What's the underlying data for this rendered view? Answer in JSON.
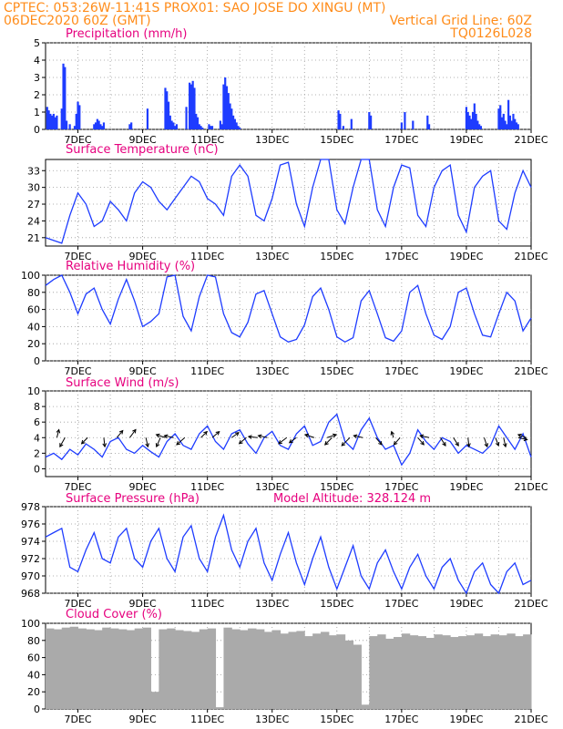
{
  "header": {
    "line1": "CPTEC:   053:26W-11:41S   PROX01: SAO JOSE DO XINGU (MT)",
    "line2_left": "06DEC2020 60Z (GMT)",
    "line2_right": "Vertical Grid Line: 60Z",
    "line3_right": "TQ0126L028"
  },
  "colors": {
    "header": "#ff8c1a",
    "title": "#e6007e",
    "series": "#1e3cff",
    "cloud": "#aaaaaa",
    "grid": "#999999"
  },
  "chart_data": [
    {
      "type": "bar",
      "title": "Precipitation (mm/h)",
      "x_tick_labels": [
        "7DEC",
        "9DEC",
        "11DEC",
        "13DEC",
        "15DEC",
        "17DEC",
        "19DEC",
        "21DEC"
      ],
      "x_range_days": [
        6.0,
        21.0
      ],
      "ylim": [
        0,
        5
      ],
      "yticks": [
        "0",
        "1",
        "2",
        "3",
        "4",
        "5"
      ],
      "grid": true,
      "x": [
        6.05,
        6.1,
        6.15,
        6.2,
        6.25,
        6.3,
        6.35,
        6.5,
        6.55,
        6.6,
        6.65,
        6.75,
        6.9,
        6.95,
        7.0,
        7.05,
        7.5,
        7.55,
        7.6,
        7.65,
        7.7,
        7.75,
        7.8,
        8.6,
        8.65,
        9.15,
        9.7,
        9.75,
        9.8,
        9.85,
        9.9,
        9.95,
        10.0,
        10.05,
        10.35,
        10.45,
        10.5,
        10.55,
        10.6,
        10.65,
        10.7,
        10.75,
        10.8,
        10.85,
        11.05,
        11.1,
        11.15,
        11.4,
        11.45,
        11.5,
        11.55,
        11.6,
        11.65,
        11.7,
        11.75,
        11.8,
        11.85,
        11.9,
        11.95,
        12.0,
        15.05,
        15.1,
        15.2,
        15.45,
        16.0,
        16.05,
        17.0,
        17.1,
        17.35,
        17.8,
        17.85,
        19.0,
        19.05,
        19.1,
        19.15,
        19.2,
        19.25,
        19.3,
        19.35,
        19.4,
        19.45,
        20.0,
        20.05,
        20.1,
        20.15,
        20.2,
        20.25,
        20.3,
        20.35,
        20.4,
        20.45,
        20.5,
        20.55,
        20.6
      ],
      "values": [
        1.3,
        1.1,
        0.9,
        0.8,
        0.9,
        0.7,
        0.8,
        1.2,
        3.8,
        3.6,
        0.5,
        0.3,
        0.2,
        0.9,
        1.6,
        1.4,
        0.3,
        0.4,
        0.6,
        0.5,
        0.3,
        0.2,
        0.4,
        0.3,
        0.4,
        1.2,
        2.4,
        2.2,
        1.6,
        0.8,
        0.5,
        0.4,
        0.2,
        0.3,
        1.3,
        2.7,
        2.6,
        2.8,
        2.4,
        0.9,
        0.7,
        0.3,
        0.2,
        0.1,
        0.3,
        0.2,
        0.2,
        0.5,
        0.3,
        2.6,
        3.0,
        2.5,
        2.1,
        1.5,
        1.2,
        0.8,
        0.6,
        0.4,
        0.2,
        0.1,
        1.1,
        0.9,
        0.2,
        0.6,
        1.0,
        0.8,
        0.4,
        1.0,
        0.5,
        0.8,
        0.3,
        1.3,
        1.0,
        0.8,
        0.6,
        1.0,
        1.5,
        0.9,
        0.5,
        0.3,
        0.2,
        1.2,
        1.4,
        0.7,
        0.9,
        0.5,
        0.3,
        1.7,
        0.8,
        0.5,
        0.9,
        0.6,
        0.4,
        0.3
      ]
    },
    {
      "type": "line",
      "title": "Surface Temperature (nC)",
      "x_tick_labels": [
        "7DEC",
        "9DEC",
        "11DEC",
        "13DEC",
        "15DEC",
        "17DEC",
        "19DEC",
        "21DEC"
      ],
      "x_range_days": [
        6.0,
        21.0
      ],
      "ylim": [
        19.5,
        35
      ],
      "yticks": [
        "21",
        "24",
        "27",
        "30",
        "33"
      ],
      "ytick_values": [
        21,
        24,
        27,
        30,
        33
      ],
      "grid": true,
      "series": [
        {
          "x": [
            6,
            6.25,
            6.5,
            6.75,
            7,
            7.25,
            7.5,
            7.75,
            8,
            8.25,
            8.5,
            8.75,
            9,
            9.25,
            9.5,
            9.75,
            10,
            10.25,
            10.5,
            10.75,
            11,
            11.25,
            11.5,
            11.75,
            12,
            12.25,
            12.5,
            12.75,
            13,
            13.25,
            13.5,
            13.75,
            14,
            14.25,
            14.5,
            14.75,
            15,
            15.25,
            15.5,
            15.75,
            16,
            16.25,
            16.5,
            16.75,
            17,
            17.25,
            17.5,
            17.75,
            18,
            18.25,
            18.5,
            18.75,
            19,
            19.25,
            19.5,
            19.75,
            20,
            20.25,
            20.5,
            20.75,
            21
          ],
          "values": [
            21,
            20.5,
            20,
            25,
            29,
            27,
            23,
            24,
            27.5,
            26,
            24,
            29,
            31,
            30,
            27.5,
            26,
            28,
            30,
            32,
            31,
            28,
            27,
            25,
            32,
            34,
            32,
            25,
            24,
            28,
            34,
            34.5,
            27,
            23,
            30,
            35,
            35,
            26,
            23.5,
            30,
            35,
            35,
            26,
            23,
            30,
            34,
            33.5,
            25,
            23,
            30,
            33,
            34,
            25,
            22,
            30,
            32,
            33,
            24,
            22.5,
            29,
            33,
            30
          ]
        }
      ]
    },
    {
      "type": "line",
      "title": "Relative Humidity (%)",
      "x_tick_labels": [
        "7DEC",
        "9DEC",
        "11DEC",
        "13DEC",
        "15DEC",
        "17DEC",
        "19DEC",
        "21DEC"
      ],
      "x_range_days": [
        6.0,
        21.0
      ],
      "ylim": [
        0,
        100
      ],
      "yticks": [
        "0",
        "20",
        "40",
        "60",
        "80",
        "100"
      ],
      "ytick_values": [
        0,
        20,
        40,
        60,
        80,
        100
      ],
      "grid": true,
      "series": [
        {
          "x": [
            6,
            6.25,
            6.5,
            6.75,
            7,
            7.25,
            7.5,
            7.75,
            8,
            8.25,
            8.5,
            8.75,
            9,
            9.25,
            9.5,
            9.75,
            10,
            10.25,
            10.5,
            10.75,
            11,
            11.25,
            11.5,
            11.75,
            12,
            12.25,
            12.5,
            12.75,
            13,
            13.25,
            13.5,
            13.75,
            14,
            14.25,
            14.5,
            14.75,
            15,
            15.25,
            15.5,
            15.75,
            16,
            16.25,
            16.5,
            16.75,
            17,
            17.25,
            17.5,
            17.75,
            18,
            18.25,
            18.5,
            18.75,
            19,
            19.25,
            19.5,
            19.75,
            20,
            20.25,
            20.5,
            20.75,
            21
          ],
          "values": [
            88,
            95,
            100,
            80,
            55,
            78,
            85,
            60,
            43,
            72,
            95,
            70,
            40,
            46,
            55,
            98,
            100,
            52,
            35,
            75,
            100,
            98,
            55,
            33,
            28,
            45,
            78,
            82,
            55,
            28,
            22,
            25,
            42,
            75,
            85,
            60,
            28,
            22,
            27,
            70,
            82,
            55,
            27,
            23,
            35,
            80,
            88,
            55,
            30,
            25,
            40,
            80,
            85,
            55,
            30,
            28,
            55,
            80,
            70,
            35,
            50
          ]
        }
      ]
    },
    {
      "type": "line",
      "title": "Surface Wind (m/s)",
      "x_tick_labels": [
        "7DEC",
        "9DEC",
        "11DEC",
        "13DEC",
        "15DEC",
        "17DEC",
        "19DEC",
        "21DEC"
      ],
      "x_range_days": [
        6.0,
        21.0
      ],
      "ylim": [
        -1,
        10
      ],
      "yticks": [
        "0",
        "2",
        "4",
        "6",
        "8",
        "10"
      ],
      "ytick_values": [
        0,
        2,
        4,
        6,
        8,
        10
      ],
      "grid": true,
      "series": [
        {
          "x": [
            6,
            6.25,
            6.5,
            6.75,
            7,
            7.25,
            7.5,
            7.75,
            8,
            8.25,
            8.5,
            8.75,
            9,
            9.25,
            9.5,
            9.75,
            10,
            10.25,
            10.5,
            10.75,
            11,
            11.25,
            11.5,
            11.75,
            12,
            12.25,
            12.5,
            12.75,
            13,
            13.25,
            13.5,
            13.75,
            14,
            14.25,
            14.5,
            14.75,
            15,
            15.25,
            15.5,
            15.75,
            16,
            16.25,
            16.5,
            16.75,
            17,
            17.25,
            17.5,
            17.75,
            18,
            18.25,
            18.5,
            18.75,
            19,
            19.25,
            19.5,
            19.75,
            20,
            20.25,
            20.5,
            20.75,
            21
          ],
          "values": [
            1.5,
            2,
            1.2,
            2.5,
            1.8,
            3.2,
            2.5,
            1.5,
            3.5,
            4,
            2.5,
            2,
            3,
            2.2,
            1.5,
            3.5,
            4.5,
            3,
            2.5,
            4.5,
            5.5,
            3.5,
            2.5,
            4.5,
            5,
            3.2,
            2,
            4,
            4.8,
            3,
            2.5,
            4.5,
            5.5,
            3,
            3.5,
            6,
            7,
            3.5,
            2.5,
            5,
            6.5,
            4,
            2.5,
            3,
            0.5,
            2,
            5,
            3.5,
            2.5,
            4,
            3.5,
            2,
            3,
            2.5,
            2,
            3,
            5.5,
            4,
            2.5,
            4.5,
            1.5
          ]
        }
      ],
      "wind_arrows": [
        {
          "x": 6.35,
          "u": 0.2,
          "v": 0.8
        },
        {
          "x": 6.6,
          "u": -0.5,
          "v": -0.9
        },
        {
          "x": 7.3,
          "u": -0.6,
          "v": -0.6
        },
        {
          "x": 7.8,
          "u": 0.1,
          "v": -0.9
        },
        {
          "x": 8.2,
          "u": 0.6,
          "v": 0.7
        },
        {
          "x": 8.6,
          "u": 0.6,
          "v": 0.8
        },
        {
          "x": 9.1,
          "u": 0.2,
          "v": -0.9
        },
        {
          "x": 9.55,
          "u": -0.4,
          "v": -0.9
        },
        {
          "x": 9.7,
          "u": -0.9,
          "v": 0.3
        },
        {
          "x": 9.95,
          "u": -0.9,
          "v": 0.2
        },
        {
          "x": 10.3,
          "u": -0.8,
          "v": -0.7
        },
        {
          "x": 10.8,
          "u": 0.6,
          "v": 0.6
        },
        {
          "x": 11.15,
          "u": 0.7,
          "v": 0.6
        },
        {
          "x": 11.75,
          "u": 0.7,
          "v": 0.5
        },
        {
          "x": 12.2,
          "u": -0.7,
          "v": -0.6
        },
        {
          "x": 12.55,
          "u": -0.9,
          "v": 0.1
        },
        {
          "x": 12.85,
          "u": -0.9,
          "v": 0.2
        },
        {
          "x": 13.45,
          "u": -0.8,
          "v": -0.6
        },
        {
          "x": 13.75,
          "u": -0.7,
          "v": -0.5
        },
        {
          "x": 14.3,
          "u": -0.9,
          "v": 0.3
        },
        {
          "x": 14.7,
          "u": 0.9,
          "v": 0.3
        },
        {
          "x": 14.85,
          "u": -0.7,
          "v": -0.7
        },
        {
          "x": 15.4,
          "u": -0.8,
          "v": -0.8
        },
        {
          "x": 15.8,
          "u": -0.9,
          "v": 0.2
        },
        {
          "x": 16.2,
          "u": 0.6,
          "v": -0.7
        },
        {
          "x": 16.75,
          "u": -0.2,
          "v": 0.6
        },
        {
          "x": 16.95,
          "u": -0.6,
          "v": -0.7
        },
        {
          "x": 17.5,
          "u": 0.6,
          "v": -0.7
        },
        {
          "x": 17.85,
          "u": -0.9,
          "v": 0.2
        },
        {
          "x": 18.2,
          "u": 0.5,
          "v": -0.8
        },
        {
          "x": 18.6,
          "u": 0.5,
          "v": -0.8
        },
        {
          "x": 19.05,
          "u": 0.1,
          "v": -0.9
        },
        {
          "x": 19.55,
          "u": 0.3,
          "v": -0.9
        },
        {
          "x": 19.9,
          "u": 0.3,
          "v": -0.8
        },
        {
          "x": 20.15,
          "u": 0.2,
          "v": -0.9
        },
        {
          "x": 20.6,
          "u": 0.9,
          "v": -0.2
        },
        {
          "x": 20.85,
          "u": -0.8,
          "v": 0.3
        }
      ]
    },
    {
      "type": "line",
      "title": "Surface Pressure (hPa)",
      "annotation": "Model Altitude: 328.124 m",
      "x_tick_labels": [
        "7DEC",
        "9DEC",
        "11DEC",
        "13DEC",
        "15DEC",
        "17DEC",
        "19DEC",
        "21DEC"
      ],
      "x_range_days": [
        6.0,
        21.0
      ],
      "ylim": [
        968,
        978
      ],
      "yticks": [
        "968",
        "970",
        "972",
        "974",
        "976",
        "978"
      ],
      "ytick_values": [
        968,
        970,
        972,
        974,
        976,
        978
      ],
      "grid": true,
      "series": [
        {
          "x": [
            6,
            6.25,
            6.5,
            6.75,
            7,
            7.25,
            7.5,
            7.75,
            8,
            8.25,
            8.5,
            8.75,
            9,
            9.25,
            9.5,
            9.75,
            10,
            10.25,
            10.5,
            10.75,
            11,
            11.25,
            11.5,
            11.75,
            12,
            12.25,
            12.5,
            12.75,
            13,
            13.25,
            13.5,
            13.75,
            14,
            14.25,
            14.5,
            14.75,
            15,
            15.25,
            15.5,
            15.75,
            16,
            16.25,
            16.5,
            16.75,
            17,
            17.25,
            17.5,
            17.75,
            18,
            18.25,
            18.5,
            18.75,
            19,
            19.25,
            19.5,
            19.75,
            20,
            20.25,
            20.5,
            20.75,
            21
          ],
          "values": [
            974.5,
            975,
            975.5,
            971,
            970.5,
            973,
            975,
            972,
            971.5,
            974.5,
            975.5,
            972,
            971,
            974,
            975.5,
            972,
            970.5,
            974.5,
            975.8,
            972,
            970.5,
            974.5,
            977,
            973,
            971,
            974,
            975.5,
            971.5,
            969.5,
            972.5,
            975,
            971.5,
            969,
            972,
            974.5,
            971,
            968.5,
            971,
            973.5,
            970,
            968.5,
            971.5,
            973,
            970.5,
            968.5,
            971,
            972.5,
            970,
            968.5,
            971,
            972,
            969.5,
            968,
            970.5,
            971.5,
            969,
            968,
            970.5,
            971.5,
            969,
            969.5
          ]
        }
      ]
    },
    {
      "type": "bar",
      "title": "Cloud Cover (%)",
      "x_tick_labels": [
        "7DEC",
        "9DEC",
        "11DEC",
        "13DEC",
        "15DEC",
        "17DEC",
        "19DEC",
        "21DEC"
      ],
      "x_range_days": [
        6.0,
        21.0
      ],
      "ylim": [
        0,
        100
      ],
      "yticks": [
        "0",
        "20",
        "40",
        "60",
        "80",
        "100"
      ],
      "ytick_values": [
        0,
        20,
        40,
        60,
        80,
        100
      ],
      "grid": true,
      "x": [
        6,
        6.25,
        6.5,
        6.75,
        7,
        7.25,
        7.5,
        7.75,
        8,
        8.25,
        8.5,
        8.75,
        9,
        9.25,
        9.5,
        9.75,
        10,
        10.25,
        10.5,
        10.75,
        11,
        11.25,
        11.5,
        11.75,
        12,
        12.25,
        12.5,
        12.75,
        13,
        13.25,
        13.5,
        13.75,
        14,
        14.25,
        14.5,
        14.75,
        15,
        15.25,
        15.5,
        15.75,
        16,
        16.25,
        16.5,
        16.75,
        17,
        17.25,
        17.5,
        17.75,
        18,
        18.25,
        18.5,
        18.75,
        19,
        19.25,
        19.5,
        19.75,
        20,
        20.25,
        20.5,
        20.75
      ],
      "values": [
        94,
        93,
        95,
        96,
        94,
        93,
        92,
        95,
        94,
        93,
        92,
        94,
        95,
        20,
        93,
        94,
        92,
        91,
        90,
        93,
        94,
        2,
        95,
        93,
        92,
        94,
        93,
        90,
        92,
        88,
        90,
        91,
        85,
        88,
        90,
        86,
        87,
        80,
        75,
        5,
        85,
        87,
        82,
        84,
        88,
        86,
        85,
        83,
        87,
        86,
        84,
        85,
        86,
        88,
        85,
        87,
        86,
        88,
        85,
        87
      ]
    }
  ]
}
